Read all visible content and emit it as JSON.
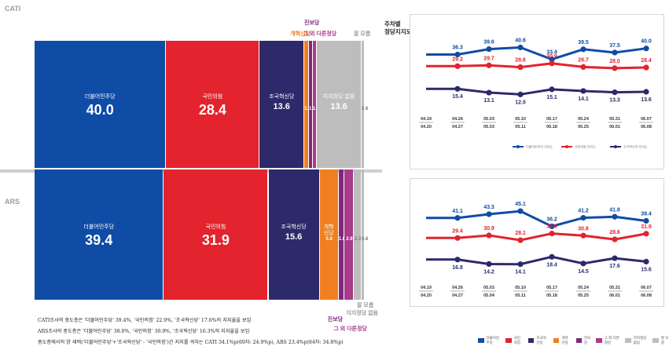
{
  "colors": {
    "democratic": "#0f4ca6",
    "ppp": "#e3232d",
    "rebuilding": "#2d2a6b",
    "reform": "#f07f1f",
    "progressive": "#7b2b7d",
    "other": "#a83c8a",
    "independent": "#bdbdbd"
  },
  "sections": {
    "cati": "CATI",
    "ars": "ARS"
  },
  "chart_title": "주차별\n정당지지도",
  "chart_data": [
    {
      "type": "bar",
      "name": "CATI stacked party support",
      "categories": [
        "더불어민주당",
        "국민의힘",
        "조국혁신당",
        "개혁신당",
        "진보당",
        "그 외 다른정당",
        "지지정당 없음",
        "잘 모름"
      ],
      "values": [
        40.0,
        28.4,
        13.6,
        1.4,
        1.1,
        1.3,
        13.6,
        0.6
      ],
      "labels": [
        "40.0",
        "28.4",
        "13.6",
        "1.4",
        "1.1",
        "1.3",
        "13.6",
        "0.6"
      ],
      "seg_names": [
        "더불어민주당",
        "국민의힘",
        "조국혁신당",
        "",
        "",
        "",
        "지지정당 없음",
        ""
      ],
      "above_labels": [
        "",
        "",
        "",
        "개혁신당",
        "진보당",
        "그 외 다른정당",
        "",
        "잘 모름"
      ],
      "series_colors": [
        "democratic",
        "ppp",
        "rebuilding",
        "reform",
        "progressive",
        "other",
        "independent",
        "independent"
      ]
    },
    {
      "type": "bar",
      "name": "ARS stacked party support",
      "categories": [
        "더불어민주당",
        "국민의힘",
        "조국혁신당",
        "개혁신당",
        "진보당",
        "그 외 다른정당",
        "지지정당 없음",
        "잘 모름"
      ],
      "values": [
        39.4,
        31.9,
        15.6,
        5.8,
        1.8,
        2.9,
        2.3,
        0.6
      ],
      "labels": [
        "39.4",
        "31.9",
        "15.6",
        "5.8",
        "1.8",
        "2.9",
        "2.3",
        "0.6"
      ],
      "seg_names": [
        "더불어민주당",
        "국민의힘",
        "조국혁신당",
        "개혁\n신당",
        "",
        "",
        "",
        ""
      ],
      "below_labels": [
        "",
        "",
        "",
        "",
        "진보당",
        "그 외 다른정당",
        "지지정당 없음",
        "잘 모름"
      ],
      "series_colors": [
        "democratic",
        "ppp",
        "rebuilding",
        "reform",
        "progressive",
        "other",
        "independent",
        "independent"
      ]
    },
    {
      "type": "line",
      "name": "CATI weekly trend",
      "x_top": [
        "04.19",
        "04.26",
        "05.03",
        "05.10",
        "05.17",
        "05.24",
        "05.31",
        "06.07"
      ],
      "x_bottom": [
        "04.20",
        "04.27",
        "05.03",
        "05.11",
        "05.18",
        "05.25",
        "06.01",
        "06.08"
      ],
      "series": [
        {
          "name": "더불어민주당 지지도",
          "color": "democratic",
          "values": [
            36.3,
            36.3,
            39.6,
            40.6,
            33.4,
            39.5,
            37.5,
            40.0
          ],
          "labels": [
            "",
            "36.3",
            "39.6",
            "40.6",
            "33.4",
            "39.5",
            "37.5",
            "40.0"
          ]
        },
        {
          "name": "국민의힘 지지도",
          "color": "ppp",
          "values": [
            29.2,
            29.2,
            29.7,
            28.6,
            30.9,
            28.7,
            28.0,
            28.4
          ],
          "labels": [
            "",
            "29.2",
            "29.7",
            "28.6",
            "30.9",
            "28.7",
            "28.0",
            "28.4"
          ]
        },
        {
          "name": "조국혁신당 지지도",
          "color": "rebuilding",
          "values": [
            15.4,
            15.4,
            13.1,
            12.0,
            15.1,
            14.1,
            13.3,
            13.6
          ],
          "labels": [
            "",
            "15.4",
            "13.1",
            "12.0",
            "15.1",
            "14.1",
            "13.3",
            "13.6"
          ]
        }
      ],
      "ylim": [
        5,
        48
      ]
    },
    {
      "type": "line",
      "name": "ARS weekly trend",
      "x_top": [
        "04.19",
        "04.26",
        "05.03",
        "05.10",
        "05.17",
        "05.24",
        "05.31",
        "06.07"
      ],
      "x_bottom": [
        "04.20",
        "04.27",
        "05.04",
        "05.11",
        "05.18",
        "05.25",
        "06.01",
        "06.08"
      ],
      "series": [
        {
          "name": "더불어민주당 지지도",
          "color": "democratic",
          "values": [
            41.1,
            41.1,
            43.3,
            45.1,
            36.2,
            41.2,
            41.8,
            39.4
          ],
          "labels": [
            "",
            "41.1",
            "43.3",
            "45.1",
            "36.2",
            "41.2",
            "41.8",
            "39.4"
          ]
        },
        {
          "name": "국민의힘 지지도",
          "color": "ppp",
          "values": [
            29.4,
            29.4,
            30.9,
            28.1,
            32.0,
            30.8,
            28.6,
            31.9
          ],
          "labels": [
            "",
            "29.4",
            "30.9",
            "28.1",
            "32.0",
            "30.8",
            "28.6",
            "31.9"
          ]
        },
        {
          "name": "조국혁신당 지지도",
          "color": "rebuilding",
          "values": [
            16.8,
            16.8,
            14.2,
            14.1,
            18.4,
            14.5,
            17.6,
            15.6
          ],
          "labels": [
            "",
            "16.8",
            "14.2",
            "14.1",
            "18.4",
            "14.5",
            "17.6",
            "15.6"
          ]
        }
      ],
      "ylim": [
        8,
        52
      ]
    }
  ],
  "legend_cati": [
    {
      "label": "더불어민주당 지지도",
      "color": "democratic"
    },
    {
      "label": "국민의힘 지지도",
      "color": "ppp"
    },
    {
      "label": "조국혁신당 지지도",
      "color": "rebuilding"
    }
  ],
  "legend_bottom": [
    {
      "label": "더불어민주당",
      "color": "democratic"
    },
    {
      "label": "국민의힘",
      "color": "ppp"
    },
    {
      "label": "조국혁신당",
      "color": "rebuilding"
    },
    {
      "label": "개혁신당",
      "color": "reform"
    },
    {
      "label": "진보당",
      "color": "progressive"
    },
    {
      "label": "그 외 다른정당",
      "color": "other"
    },
    {
      "label": "지지정당없음",
      "color": "independent"
    },
    {
      "label": "잘 모름",
      "color": "independent"
    }
  ],
  "footnotes": [
    "CATI조사의 중도층은 '더불어민주당' 39.4%, '국민의힘' 22.9%, '조국혁신당' 17.6%의 지지율을 보임",
    "ARS조사의 중도층은 '더불어민주당' 38.0%, '국민의힘' 30.9%, '조국혁신당' 16.3%의 지지율을 보임",
    "중도층에서의 양 세력('더불어민주당'+'조국혁신당' - '국민의힘')간 지지를 격차는 CATI 34.1%p(69차: 24.9%p), ARS 23.4%p(84차: 34.8%p)"
  ]
}
